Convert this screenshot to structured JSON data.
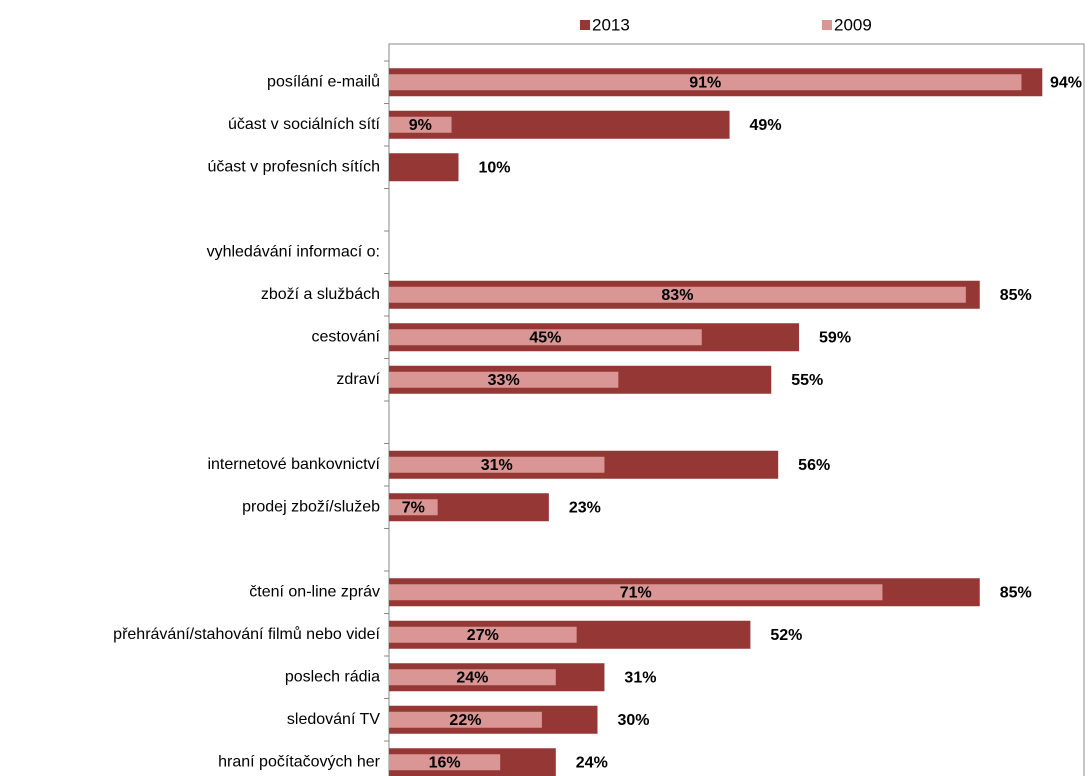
{
  "chart_data": {
    "type": "bar",
    "orientation": "horizontal",
    "categories": [
      "posílání e-mailů",
      "účast v sociálních sítí",
      "účast v profesních sítích",
      null,
      "vyhledávání informací o:",
      "zboží a službách",
      "cestování",
      "zdraví",
      null,
      "internetové bankovnictví",
      "prodej zboží/služeb",
      null,
      "čtení on-line zpráv",
      "přehrávání/stahování filmů nebo videí",
      "poslech rádia",
      "sledování TV",
      "hraní počítačových her"
    ],
    "series": [
      {
        "name": "2013",
        "color": "#953735",
        "values": [
          94,
          49,
          10,
          null,
          null,
          85,
          59,
          55,
          null,
          56,
          23,
          null,
          85,
          52,
          31,
          30,
          24
        ],
        "value_labels": [
          "94%",
          "49%",
          "10%",
          null,
          null,
          "85%",
          "59%",
          "55%",
          null,
          "56%",
          "23%",
          null,
          "85%",
          "52%",
          "31%",
          "30%",
          "24%"
        ]
      },
      {
        "name": "2009",
        "color": "#d99694",
        "values": [
          91,
          9,
          null,
          null,
          null,
          83,
          45,
          33,
          null,
          31,
          7,
          null,
          71,
          27,
          24,
          22,
          16
        ],
        "value_labels": [
          "91%",
          "9%",
          null,
          null,
          null,
          "83%",
          "45%",
          "33%",
          null,
          "31%",
          "7%",
          null,
          "71%",
          "27%",
          "24%",
          "22%",
          "16%"
        ]
      }
    ],
    "xlim": [
      0,
      100
    ],
    "legend": "top"
  }
}
